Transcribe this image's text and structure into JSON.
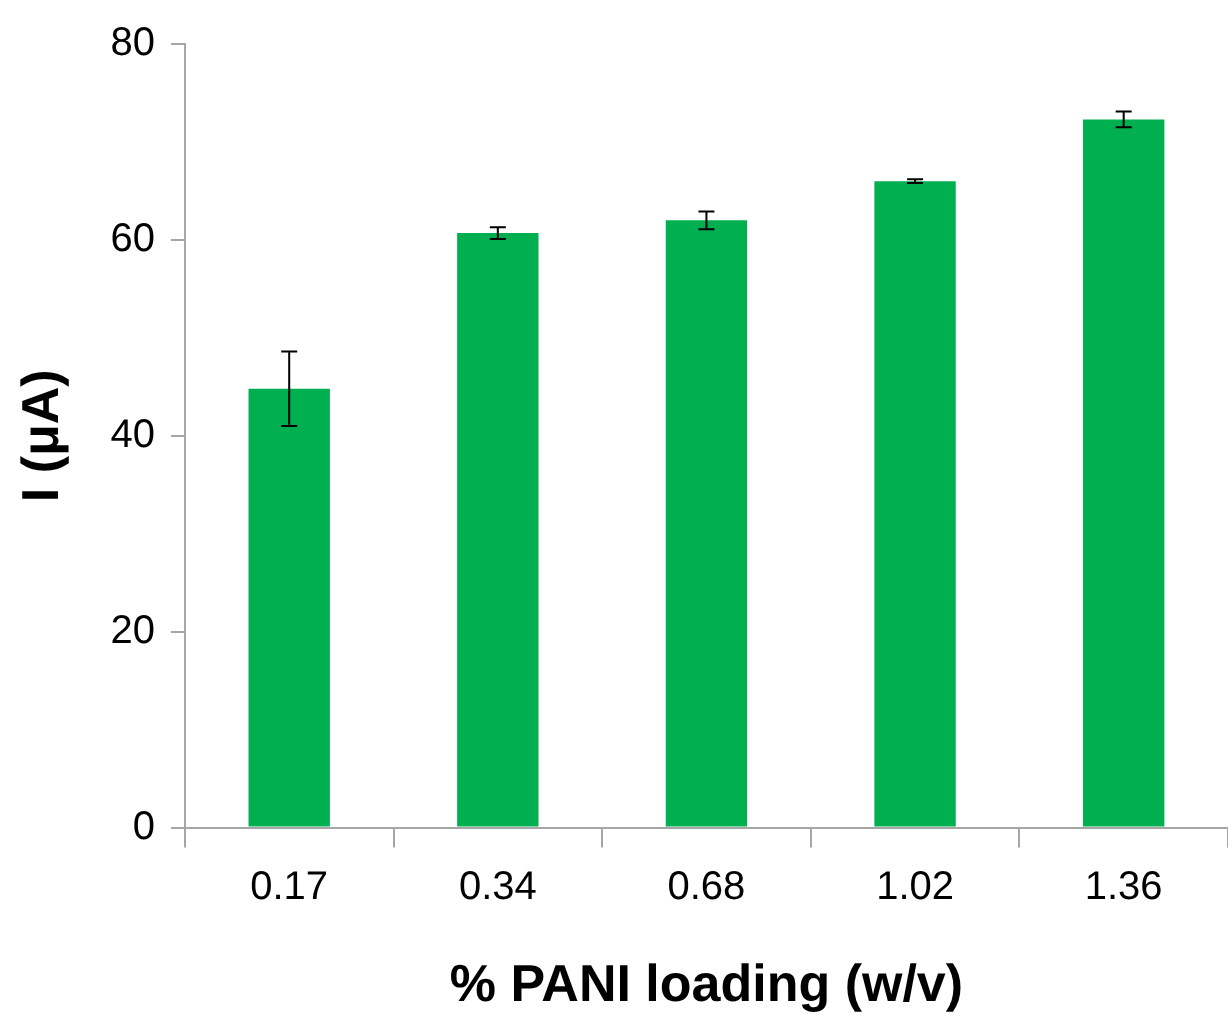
{
  "chart_data": {
    "type": "bar",
    "xlabel": "% PANI loading (w/v)",
    "ylabel": "I (μA)",
    "categories": [
      "0.17",
      "0.34",
      "0.68",
      "1.02",
      "1.36"
    ],
    "values": [
      44.8,
      60.7,
      62.0,
      66.0,
      72.3
    ],
    "errors": [
      3.8,
      0.6,
      0.9,
      0.2,
      0.8
    ],
    "color": "#00b050",
    "ylim": [
      0,
      80
    ],
    "yticks": [
      0,
      20,
      40,
      60,
      80
    ]
  }
}
